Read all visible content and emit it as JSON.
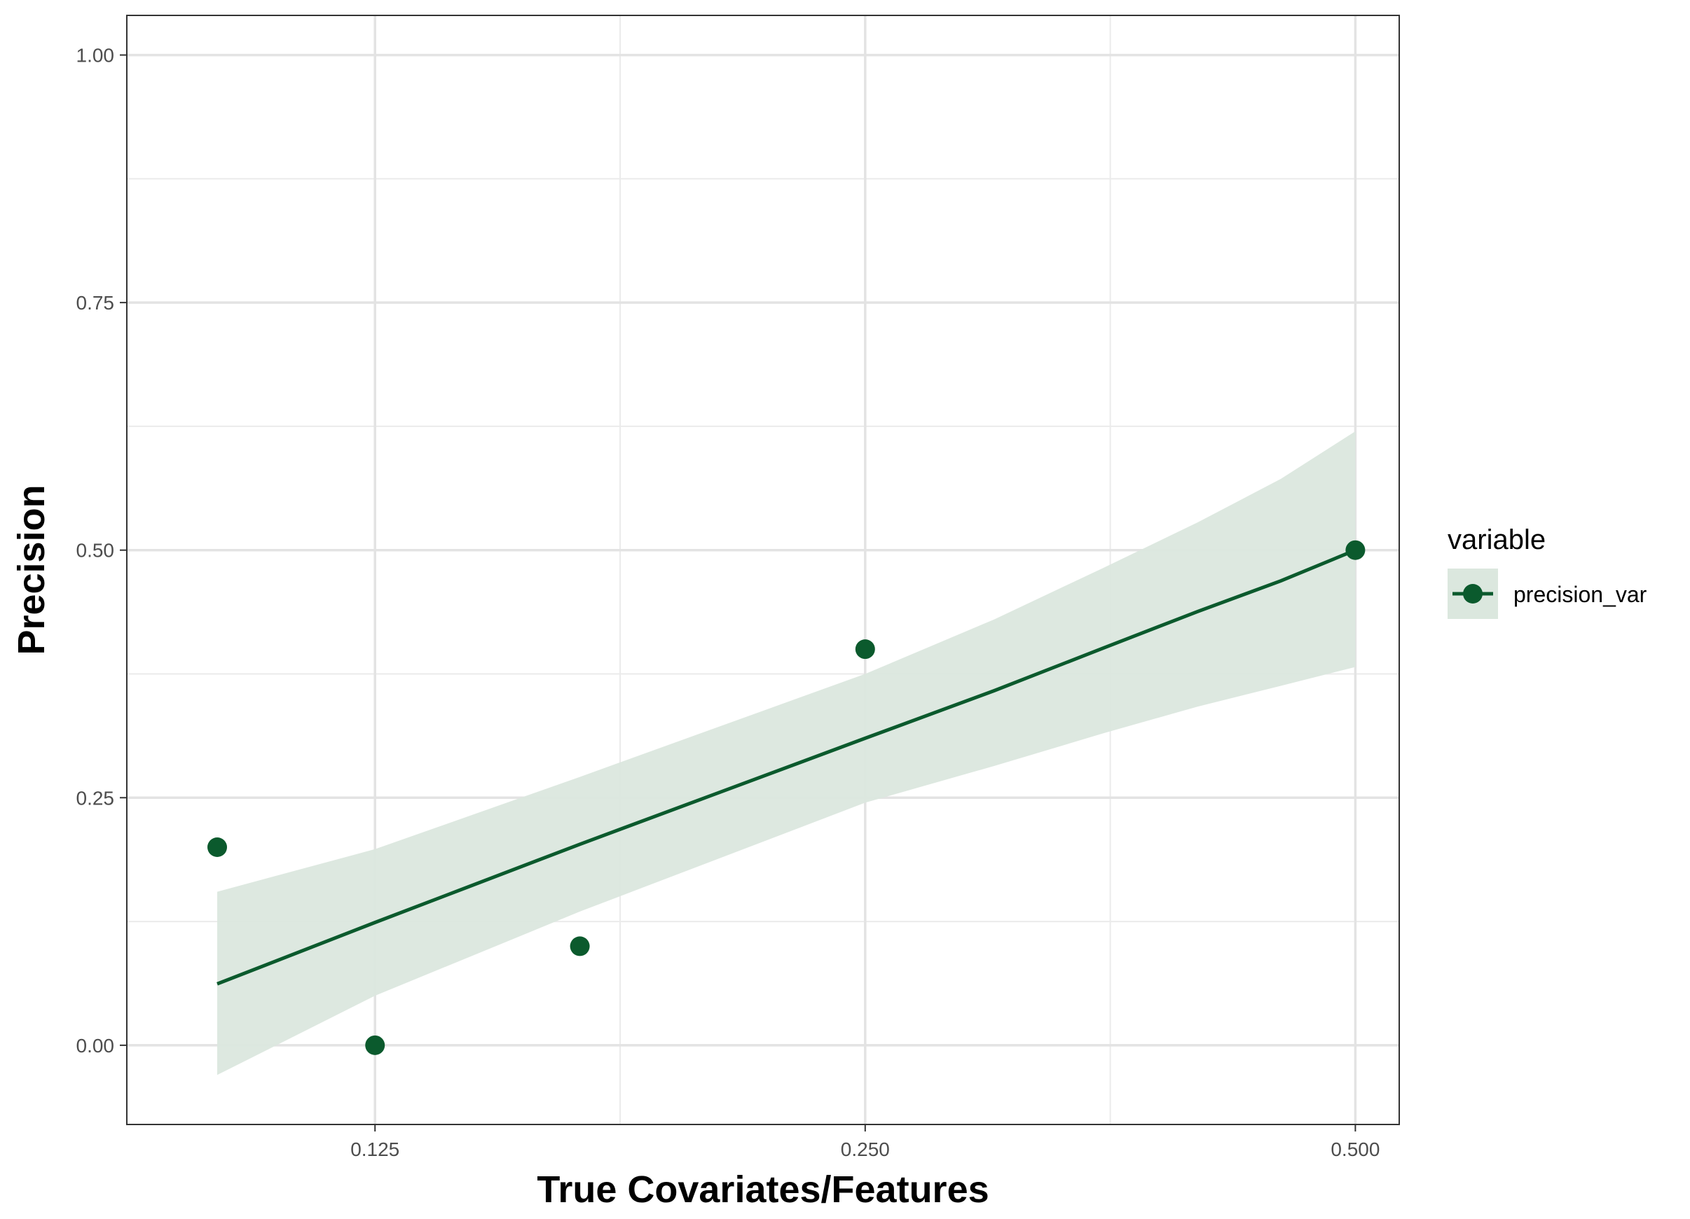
{
  "chart_data": {
    "type": "scatter",
    "xlabel": "True Covariates/Features",
    "ylabel": "Precision",
    "x_scale": "log2",
    "x_ticks": [
      0.125,
      0.25,
      0.5
    ],
    "x_tick_labels": [
      "0.125",
      "0.250",
      "0.500"
    ],
    "y_ticks": [
      0,
      0.25,
      0.5,
      0.75,
      1
    ],
    "y_tick_labels": [
      "0.00",
      "0.25",
      "0.50",
      "0.75",
      "1.00"
    ],
    "ylim": [
      -0.08,
      1.04
    ],
    "grid": true,
    "series": [
      {
        "name": "precision_var",
        "color": "#0b5a2d",
        "band_color": "#dbe7de",
        "x": [
          0.1,
          0.125,
          0.167,
          0.25,
          0.5
        ],
        "y": [
          0.2,
          0.0,
          0.1,
          0.4,
          0.5
        ],
        "fit": {
          "x": [
            0.1,
            0.125,
            0.167,
            0.25,
            0.3,
            0.35,
            0.4,
            0.45,
            0.5
          ],
          "y": [
            0.062,
            0.124,
            0.203,
            0.31,
            0.358,
            0.401,
            0.438,
            0.469,
            0.5
          ],
          "lower": [
            -0.03,
            0.05,
            0.135,
            0.245,
            0.282,
            0.315,
            0.342,
            0.363,
            0.382
          ],
          "upper": [
            0.155,
            0.198,
            0.271,
            0.375,
            0.43,
            0.482,
            0.528,
            0.572,
            0.62
          ]
        }
      }
    ],
    "legend": {
      "title": "variable",
      "position": "right"
    }
  }
}
